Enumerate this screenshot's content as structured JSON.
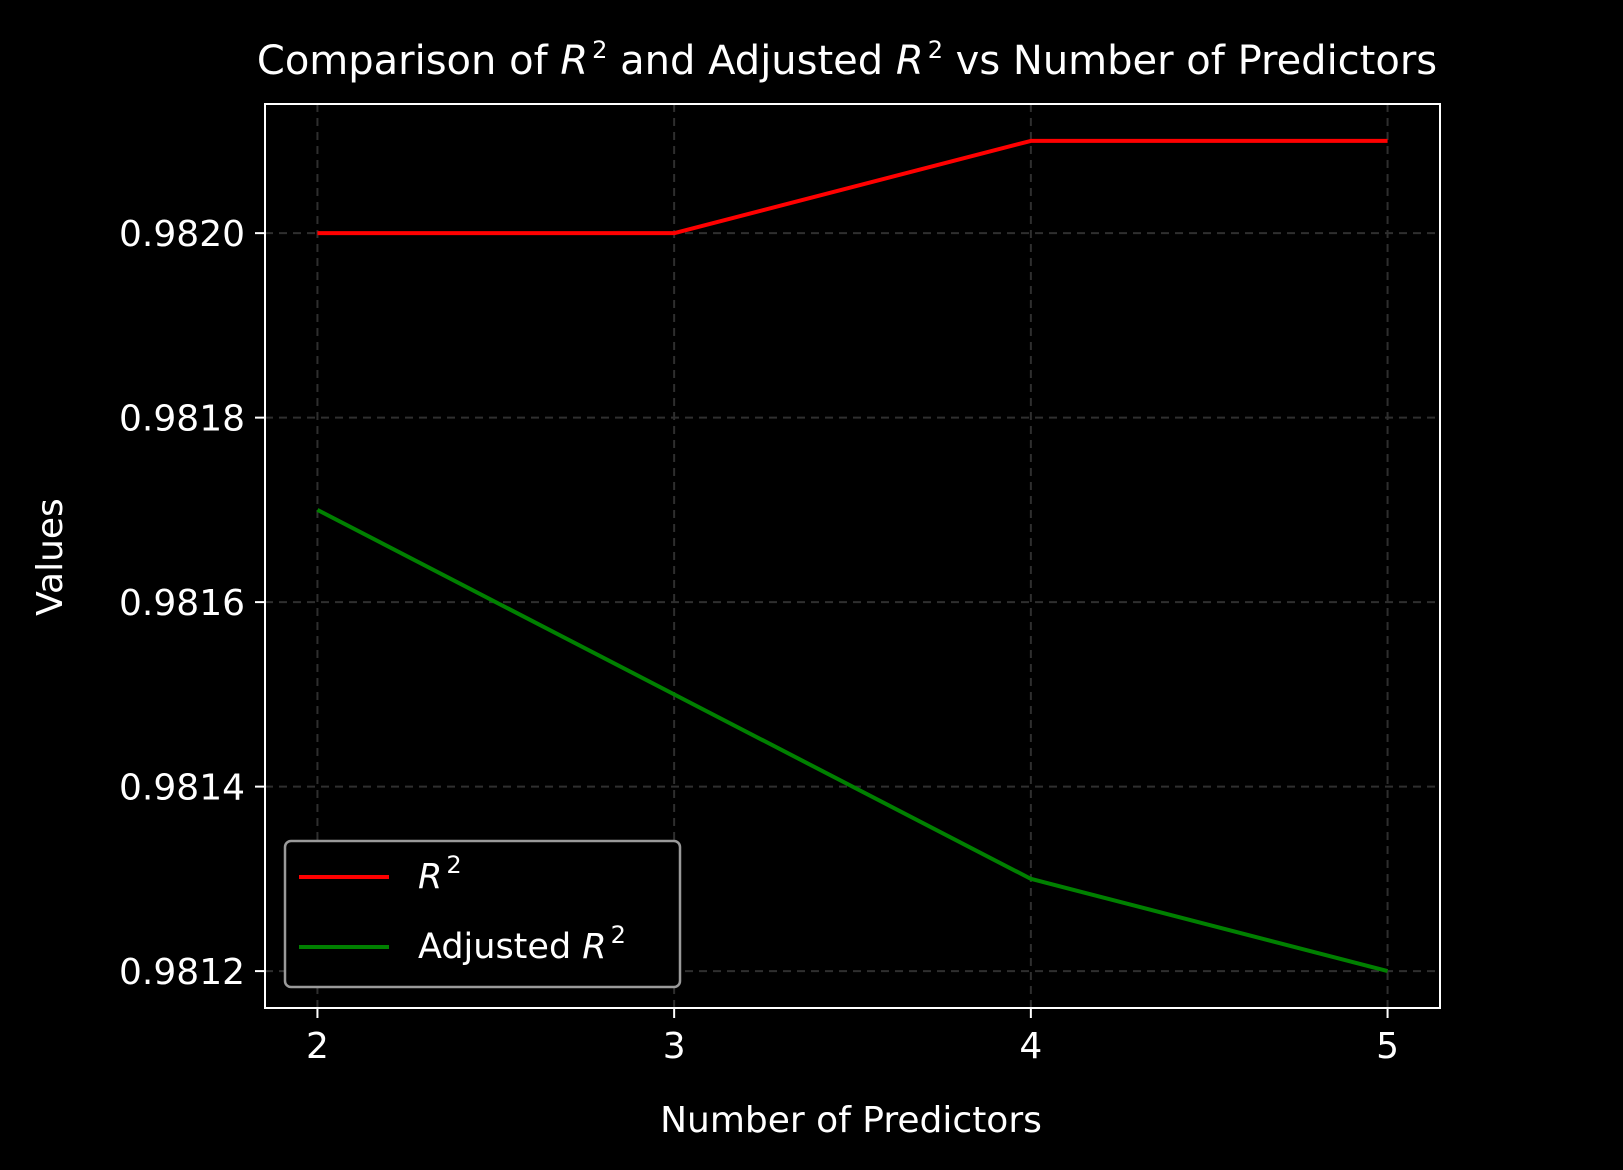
{
  "chart_data": {
    "type": "line",
    "title": {
      "prefix": "Comparison of ",
      "r1": "R",
      "exp1": "2",
      "mid": " and Adjusted ",
      "r2": "R",
      "exp2": "2",
      "suffix": " vs Number of Predictors"
    },
    "xlabel": "Number of Predictors",
    "ylabel": "Values",
    "x": [
      2,
      3,
      4,
      5
    ],
    "xticks": [
      "2",
      "3",
      "4",
      "5"
    ],
    "yticks": [
      "0.9812",
      "0.9814",
      "0.9816",
      "0.9818",
      "0.9820"
    ],
    "ytick_values": [
      0.9812,
      0.9814,
      0.9816,
      0.9818,
      0.982
    ],
    "xlim": [
      1.853,
      5.147
    ],
    "ylim": [
      0.98116,
      0.98214
    ],
    "grid": true,
    "legend_position": "lower-left",
    "series": [
      {
        "name": {
          "prefix": "",
          "r": "R",
          "exp": "2"
        },
        "color": "#ff0000",
        "values": [
          0.982,
          0.982,
          0.9821,
          0.9821
        ]
      },
      {
        "name": {
          "prefix": "Adjusted ",
          "r": "R",
          "exp": "2"
        },
        "color": "#008000",
        "values": [
          0.9817,
          0.9815,
          0.9813,
          0.9812
        ]
      }
    ]
  }
}
